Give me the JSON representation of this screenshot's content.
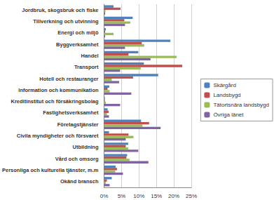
{
  "chart_data": {
    "type": "bar",
    "orientation": "horizontal",
    "grid": true,
    "legend": "right",
    "categories": [
      "Jordbruk, skogsbruk och fiske",
      "Tillverkning och utvinning",
      "Energi och miljö",
      "Byggverksamhet",
      "Handel",
      "Transport",
      "Hotell och restauranger",
      "Information och kommunikation",
      "Kreditinstitut och försäkringsbolag",
      "Fastighetsverksamhet",
      "Företagstjänster",
      "Civila myndigheter och försvaret",
      "Utbildning",
      "Vård och omsorg",
      "Personliga och kulturella tjänster, m.m",
      "Okänd bransch"
    ],
    "series": [
      {
        "name": "Skärgård",
        "color": "#4f81bd",
        "values": [
          2.7,
          8.2,
          0.5,
          19.0,
          9.8,
          11.4,
          15.5,
          1.5,
          0.2,
          1.0,
          10.6,
          1.4,
          6.9,
          6.6,
          3.3,
          2.2
        ]
      },
      {
        "name": "Landsbygd",
        "color": "#c0504d",
        "values": [
          4.7,
          5.8,
          0.3,
          10.8,
          7.0,
          22.4,
          8.3,
          1.0,
          0.2,
          1.3,
          12.9,
          7.0,
          6.2,
          6.4,
          3.7,
          0.8
        ]
      },
      {
        "name": "Tätortsnära landsbygd",
        "color": "#9bbb59",
        "values": [
          0.4,
          7.5,
          2.7,
          11.5,
          20.8,
          10.5,
          2.2,
          1.6,
          0.5,
          0.8,
          11.0,
          8.4,
          6.9,
          7.3,
          3.2,
          0.5
        ]
      },
      {
        "name": "Övriga länet",
        "color": "#8064a2",
        "values": [
          0.3,
          6.0,
          0.3,
          6.0,
          13.3,
          4.6,
          4.3,
          7.8,
          4.6,
          1.4,
          16.2,
          6.2,
          9.8,
          12.7,
          5.4,
          1.6
        ]
      }
    ],
    "xlim": [
      0,
      25
    ],
    "xticks": [
      {
        "value": 0,
        "label": "0%"
      },
      {
        "value": 5,
        "label": "5%"
      },
      {
        "value": 10,
        "label": "10%"
      },
      {
        "value": 15,
        "label": "15%"
      },
      {
        "value": 20,
        "label": "20%"
      },
      {
        "value": 25,
        "label": "25%"
      }
    ]
  }
}
